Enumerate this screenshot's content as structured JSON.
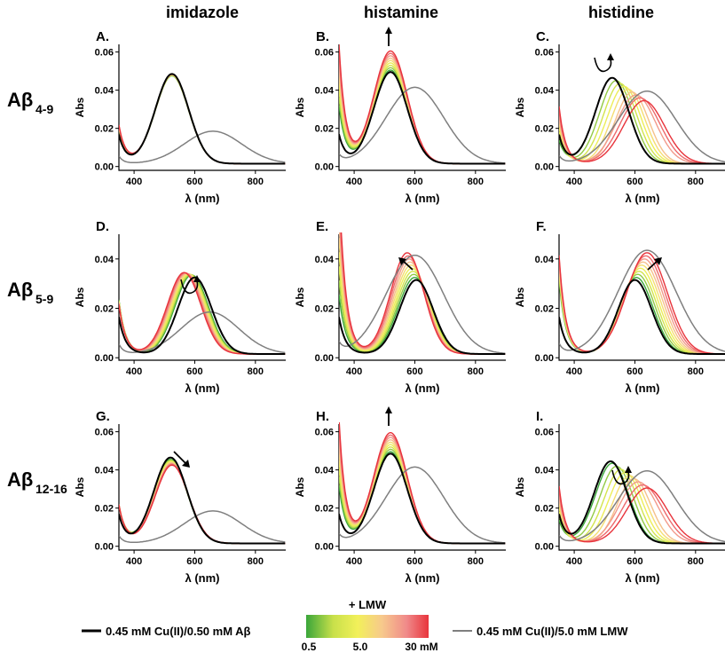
{
  "figure": {
    "column_headers": [
      "imidazole",
      "histamine",
      "histidine"
    ],
    "row_labels": [
      {
        "main": "Aβ",
        "sub": "4-9"
      },
      {
        "main": "Aβ",
        "sub": "5-9"
      },
      {
        "main": "Aβ",
        "sub": "12-16"
      }
    ],
    "legend": {
      "black_line_label": "0.45 mM Cu(II)/0.50 mM Aβ",
      "gradient_title": "+ LMW",
      "gradient_ticks": [
        "0.5",
        "5.0",
        "30 mM"
      ],
      "grey_line_label": "0.45 mM Cu(II)/5.0 mM LMW"
    },
    "colors": {
      "black_line": "#000000",
      "grey_line": "#7f7f7f",
      "gradient": [
        "#3aa63a",
        "#c8e04a",
        "#f2f05a",
        "#f7c98c",
        "#f08a8a",
        "#e8343c"
      ]
    }
  },
  "chart_data": [
    {
      "panel": "A.",
      "type": "line",
      "xlabel": "λ (nm)",
      "ylabel": "Abs",
      "xlim": [
        350,
        900
      ],
      "ylim": [
        -0.002,
        0.064
      ],
      "xticks": [
        "400",
        "600",
        "800"
      ],
      "yticks": [
        "0.00",
        "0.02",
        "0.04",
        "0.06"
      ],
      "series": {
        "black": {
          "peak_nm": 525,
          "peak_abs": 0.047
        },
        "grey": {
          "peak_nm": 660,
          "peak_abs": 0.017
        },
        "colored_start": {
          "peak_nm": 525,
          "peak_abs": 0.046
        },
        "colored_end": {
          "peak_nm": 525,
          "peak_abs": 0.047
        }
      },
      "arrow": "none"
    },
    {
      "panel": "B.",
      "type": "line",
      "xlabel": "λ (nm)",
      "ylabel": "Abs",
      "xlim": [
        350,
        900
      ],
      "ylim": [
        -0.002,
        0.064
      ],
      "xticks": [
        "400",
        "600",
        "800"
      ],
      "yticks": [
        "0.00",
        "0.02",
        "0.04",
        "0.06"
      ],
      "series": {
        "black": {
          "peak_nm": 520,
          "peak_abs": 0.048
        },
        "grey": {
          "peak_nm": 600,
          "peak_abs": 0.04
        },
        "colored_start": {
          "peak_nm": 520,
          "peak_abs": 0.049
        },
        "colored_end": {
          "peak_nm": 520,
          "peak_abs": 0.059
        }
      },
      "arrow": "up"
    },
    {
      "panel": "C.",
      "type": "line",
      "xlabel": "λ (nm)",
      "ylabel": "Abs",
      "xlim": [
        350,
        900
      ],
      "ylim": [
        -0.002,
        0.064
      ],
      "xticks": [
        "400",
        "600",
        "800"
      ],
      "yticks": [
        "0.00",
        "0.02",
        "0.04",
        "0.06"
      ],
      "series": {
        "black": {
          "peak_nm": 525,
          "peak_abs": 0.045
        },
        "grey": {
          "peak_nm": 640,
          "peak_abs": 0.038
        },
        "colored_start": {
          "peak_nm": 525,
          "peak_abs": 0.045
        },
        "colored_end": {
          "peak_nm": 630,
          "peak_abs": 0.033
        }
      },
      "arrow": "curved"
    },
    {
      "panel": "D.",
      "type": "line",
      "xlabel": "λ (nm)",
      "ylabel": "Abs",
      "xlim": [
        350,
        900
      ],
      "ylim": [
        -0.001,
        0.05
      ],
      "xticks": [
        "400",
        "600",
        "800"
      ],
      "yticks": [
        "0.00",
        "0.02",
        "0.04"
      ],
      "series": {
        "black": {
          "peak_nm": 600,
          "peak_abs": 0.031
        },
        "grey": {
          "peak_nm": 650,
          "peak_abs": 0.017
        },
        "colored_start": {
          "peak_nm": 590,
          "peak_abs": 0.032
        },
        "colored_end": {
          "peak_nm": 565,
          "peak_abs": 0.033
        }
      },
      "arrow": "curved"
    },
    {
      "panel": "E.",
      "type": "line",
      "xlabel": "λ (nm)",
      "ylabel": "Abs",
      "xlim": [
        350,
        900
      ],
      "ylim": [
        -0.001,
        0.05
      ],
      "xticks": [
        "400",
        "600",
        "800"
      ],
      "yticks": [
        "0.00",
        "0.02",
        "0.04"
      ],
      "series": {
        "black": {
          "peak_nm": 605,
          "peak_abs": 0.03
        },
        "grey": {
          "peak_nm": 600,
          "peak_abs": 0.04
        },
        "colored_start": {
          "peak_nm": 600,
          "peak_abs": 0.031
        },
        "colored_end": {
          "peak_nm": 575,
          "peak_abs": 0.041
        }
      },
      "arrow": "up-left"
    },
    {
      "panel": "F.",
      "type": "line",
      "xlabel": "λ (nm)",
      "ylabel": "Abs",
      "xlim": [
        350,
        900
      ],
      "ylim": [
        -0.001,
        0.05
      ],
      "xticks": [
        "400",
        "600",
        "800"
      ],
      "yticks": [
        "0.00",
        "0.02",
        "0.04"
      ],
      "series": {
        "black": {
          "peak_nm": 600,
          "peak_abs": 0.03
        },
        "grey": {
          "peak_nm": 640,
          "peak_abs": 0.042
        },
        "colored_start": {
          "peak_nm": 605,
          "peak_abs": 0.031
        },
        "colored_end": {
          "peak_nm": 640,
          "peak_abs": 0.041
        }
      },
      "arrow": "up-right"
    },
    {
      "panel": "G.",
      "type": "line",
      "xlabel": "λ (nm)",
      "ylabel": "Abs",
      "xlim": [
        350,
        900
      ],
      "ylim": [
        -0.002,
        0.064
      ],
      "xticks": [
        "400",
        "600",
        "800"
      ],
      "yticks": [
        "0.00",
        "0.02",
        "0.04",
        "0.06"
      ],
      "series": {
        "black": {
          "peak_nm": 520,
          "peak_abs": 0.045
        },
        "grey": {
          "peak_nm": 660,
          "peak_abs": 0.017
        },
        "colored_start": {
          "peak_nm": 520,
          "peak_abs": 0.044
        },
        "colored_end": {
          "peak_nm": 525,
          "peak_abs": 0.041
        }
      },
      "arrow": "down-right"
    },
    {
      "panel": "H.",
      "type": "line",
      "xlabel": "λ (nm)",
      "ylabel": "Abs",
      "xlim": [
        350,
        900
      ],
      "ylim": [
        -0.002,
        0.064
      ],
      "xticks": [
        "400",
        "600",
        "800"
      ],
      "yticks": [
        "0.00",
        "0.02",
        "0.04",
        "0.06"
      ],
      "series": {
        "black": {
          "peak_nm": 520,
          "peak_abs": 0.047
        },
        "grey": {
          "peak_nm": 600,
          "peak_abs": 0.04
        },
        "colored_start": {
          "peak_nm": 520,
          "peak_abs": 0.048
        },
        "colored_end": {
          "peak_nm": 520,
          "peak_abs": 0.058
        }
      },
      "arrow": "up"
    },
    {
      "panel": "I.",
      "type": "line",
      "xlabel": "λ (nm)",
      "ylabel": "Abs",
      "xlim": [
        350,
        900
      ],
      "ylim": [
        -0.002,
        0.064
      ],
      "xticks": [
        "400",
        "600",
        "800"
      ],
      "yticks": [
        "0.00",
        "0.02",
        "0.04",
        "0.06"
      ],
      "series": {
        "black": {
          "peak_nm": 520,
          "peak_abs": 0.043
        },
        "grey": {
          "peak_nm": 640,
          "peak_abs": 0.038
        },
        "colored_start": {
          "peak_nm": 525,
          "peak_abs": 0.042
        },
        "colored_end": {
          "peak_nm": 640,
          "peak_abs": 0.029
        }
      },
      "arrow": "curved"
    }
  ]
}
